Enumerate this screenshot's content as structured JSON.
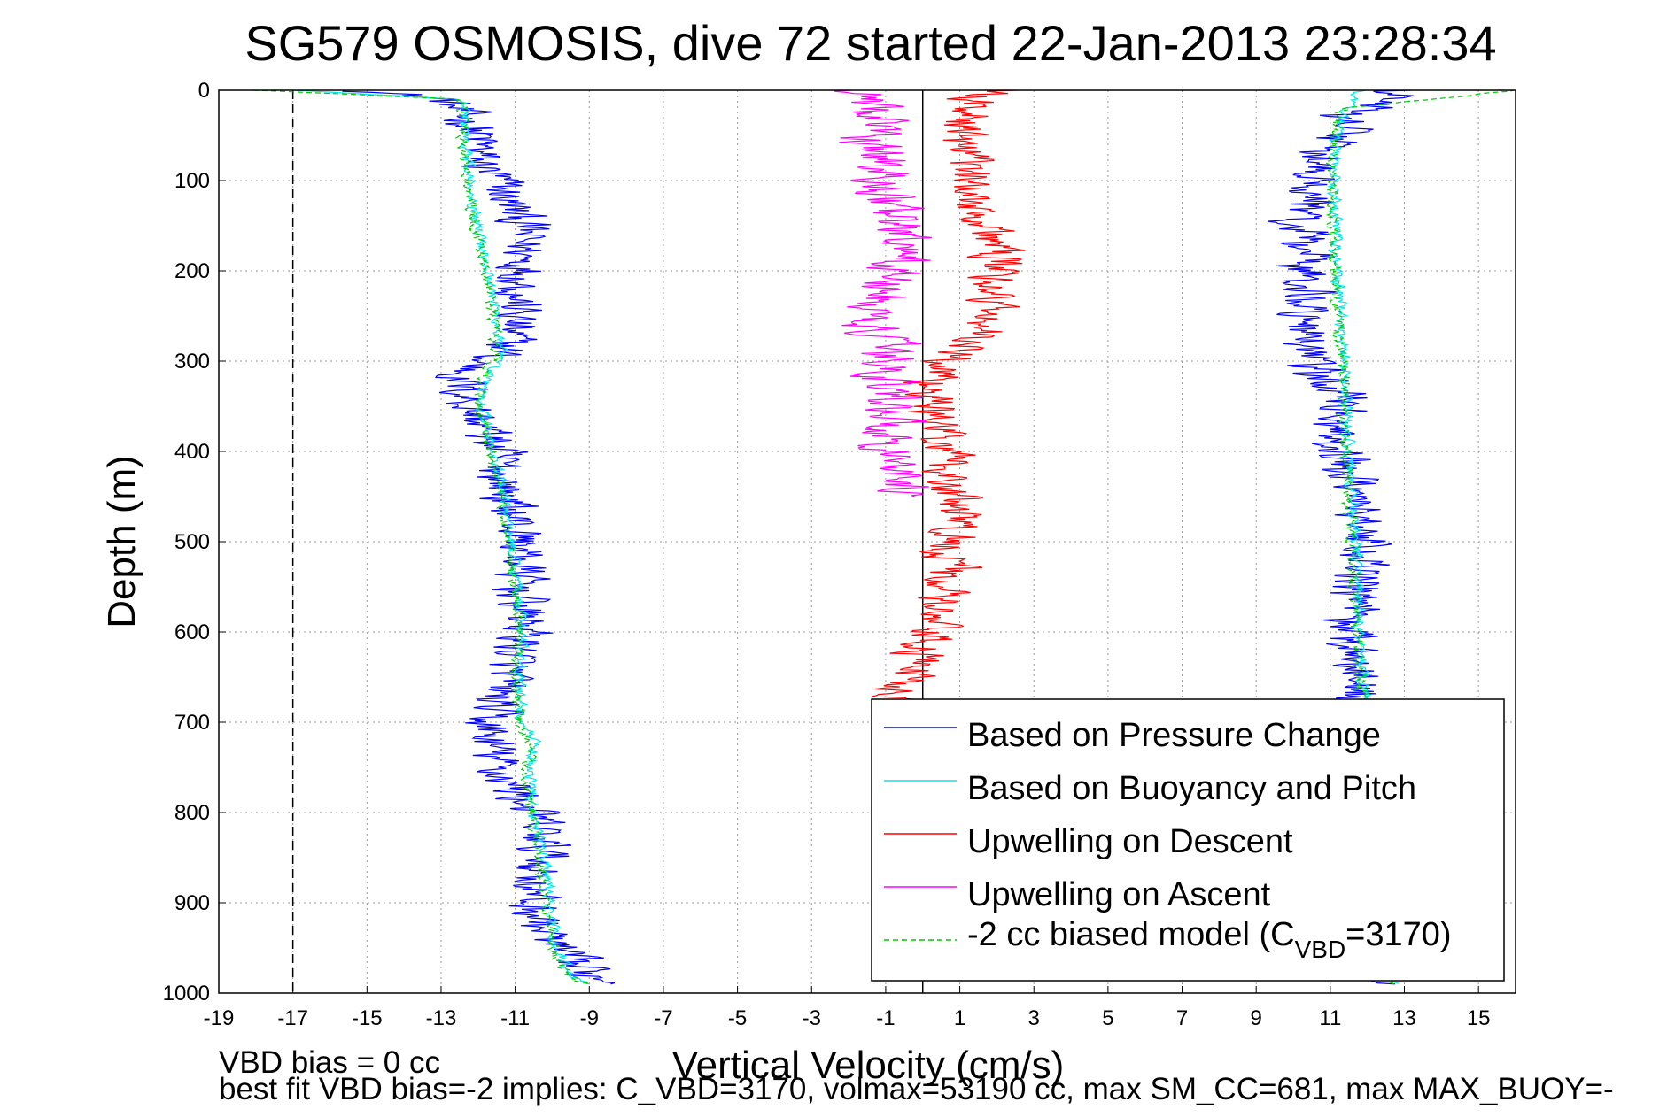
{
  "chart_data": {
    "type": "line",
    "title": "SG579 OSMOSIS, dive 72 started 22-Jan-2013 23:28:34",
    "xlabel": "Vertical Velocity (cm/s)",
    "ylabel": "Depth (m)",
    "xlim": [
      -19,
      16
    ],
    "ylim": [
      0,
      1000
    ],
    "y_reversed": true,
    "xticks": [
      -19,
      -17,
      -15,
      -13,
      -11,
      -9,
      -7,
      -5,
      -3,
      -1,
      1,
      3,
      5,
      7,
      9,
      11,
      13,
      15
    ],
    "yticks": [
      0,
      100,
      200,
      300,
      400,
      500,
      600,
      700,
      800,
      900,
      1000
    ],
    "grid": true,
    "legend_position": "bottom-right",
    "reference_lines": [
      {
        "x": -17,
        "style": "dashed",
        "color": "#000000"
      },
      {
        "x": 0,
        "style": "solid",
        "color": "#000000"
      }
    ],
    "series": [
      {
        "name": "Based on Pressure Change",
        "color": "#0000ff",
        "style": "solid",
        "noise": 0.9,
        "segments": [
          {
            "depth": [
              0,
              10,
              30,
              50,
              80,
              100,
              150,
              200,
              250,
              290,
              300,
              320,
              350,
              400,
              450,
              500,
              550,
              600,
              650,
              700,
              750,
              800,
              850,
              900,
              950,
              980,
              990
            ],
            "velocity": [
              -15,
              -13,
              -12.3,
              -12,
              -12,
              -11.5,
              -10.8,
              -10.7,
              -11,
              -11.3,
              -12,
              -12.5,
              -12.2,
              -11.5,
              -11.2,
              -10.8,
              -10.9,
              -10.7,
              -11.3,
              -11.8,
              -11.5,
              -10.5,
              -10.2,
              -10.6,
              -10,
              -9,
              -8
            ]
          },
          {
            "depth": [
              990,
              850,
              700,
              600,
              500,
              400,
              340,
              300,
              250,
              200,
              150,
              100,
              60,
              30,
              10,
              0
            ],
            "velocity": [
              12.7,
              12.5,
              12,
              11.5,
              12,
              11.3,
              11.3,
              10.5,
              10.2,
              10.3,
              10.2,
              10.6,
              10.8,
              11.5,
              12.5,
              13
            ]
          }
        ]
      },
      {
        "name": "Based on Buoyancy and Pitch",
        "color": "#00e5e5",
        "style": "solid",
        "noise": 0.2,
        "segments": [
          {
            "depth": [
              0,
              10,
              30,
              60,
              100,
              150,
              200,
              250,
              290,
              320,
              350,
              400,
              450,
              500,
              550,
              600,
              650,
              700,
              720,
              750,
              800,
              850,
              900,
              950,
              980,
              990
            ],
            "velocity": [
              -17,
              -12.5,
              -12.3,
              -12.3,
              -12.2,
              -12,
              -11.7,
              -11.5,
              -11.4,
              -11.8,
              -11.9,
              -11.6,
              -11.3,
              -11.1,
              -10.9,
              -10.8,
              -10.9,
              -10.8,
              -10.5,
              -10.6,
              -10.5,
              -10.2,
              -10.1,
              -9.9,
              -9.5,
              -9
            ]
          },
          {
            "depth": [
              990,
              900,
              800,
              700,
              600,
              500,
              400,
              300,
              200,
              100,
              50,
              20,
              0
            ],
            "velocity": [
              12.7,
              12.6,
              12.2,
              12,
              11.8,
              11.7,
              11.5,
              11.4,
              11.2,
              11.1,
              11.2,
              11.5,
              11.8
            ]
          }
        ]
      },
      {
        "name": "Upwelling on Descent",
        "color": "#ff0000",
        "style": "solid",
        "noise": 0.9,
        "segments": [
          {
            "depth": [
              0,
              10,
              30,
              60,
              100,
              150,
              200,
              250,
              280,
              300,
              350,
              400,
              450,
              500,
              550,
              600,
              650,
              680
            ],
            "velocity": [
              2,
              1.5,
              1.2,
              1,
              1.2,
              1.8,
              2,
              1.8,
              1.3,
              0.6,
              0.2,
              0.6,
              0.8,
              0.9,
              0.5,
              0.1,
              -0.3,
              -0.5
            ]
          }
        ]
      },
      {
        "name": "Upwelling on Ascent",
        "color": "#ff00ff",
        "style": "solid",
        "noise": 1.0,
        "segments": [
          {
            "depth": [
              0,
              10,
              30,
              50,
              80,
              100,
              150,
              200,
              250,
              290,
              300,
              350,
              400,
              450
            ],
            "velocity": [
              -2,
              -1.5,
              -1,
              -1.6,
              -1,
              -1.2,
              -0.6,
              -0.8,
              -1.5,
              -1.1,
              -1,
              -0.8,
              -0.8,
              -0.4
            ]
          }
        ]
      },
      {
        "name": "-2 cc biased model (C_VBD=3170)",
        "color": "#00c800",
        "style": "dashed",
        "noise": 0.2,
        "segments": [
          {
            "depth": [
              0,
              10,
              30,
              60,
              100,
              150,
              200,
              250,
              290,
              320,
              350,
              400,
              450,
              500,
              550,
              600,
              650,
              700,
              720,
              750,
              800,
              850,
              900,
              950,
              980,
              990
            ],
            "velocity": [
              -18,
              -12.5,
              -12.4,
              -12.4,
              -12.3,
              -12.1,
              -11.8,
              -11.6,
              -11.5,
              -11.9,
              -12,
              -11.7,
              -11.4,
              -11.2,
              -11,
              -10.9,
              -11,
              -10.9,
              -10.6,
              -10.7,
              -10.6,
              -10.3,
              -10.2,
              -10,
              -9.6,
              -9.1
            ]
          },
          {
            "depth": [
              990,
              900,
              800,
              700,
              600,
              500,
              400,
              300,
              200,
              100,
              50,
              20,
              0
            ],
            "velocity": [
              12.6,
              12.5,
              12.1,
              11.9,
              11.7,
              11.6,
              11.4,
              11.3,
              11.1,
              11,
              11.1,
              11.4,
              16
            ]
          }
        ]
      }
    ],
    "annotations": [
      "VBD bias = 0 cc",
      "best fit VBD bias=-2 implies: C_VBD=3170, volmax=53190 cc, max SM_CC=681, max MAX_BUOY=-"
    ]
  },
  "legend": {
    "entries": [
      {
        "text": "Based on Pressure Change"
      },
      {
        "text": "Based on Buoyancy and Pitch"
      },
      {
        "text": "Upwelling on Descent"
      },
      {
        "text": "Upwelling on Ascent"
      },
      {
        "text_prefix": "-2 cc biased model (C",
        "text_sub": "VBD",
        "text_suffix": "=3170)"
      }
    ]
  }
}
